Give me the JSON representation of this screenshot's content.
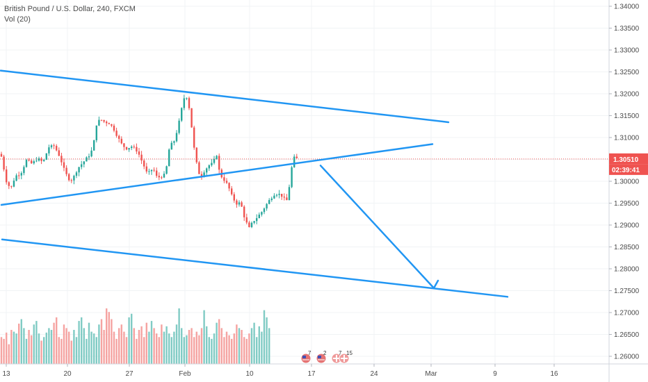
{
  "header": {
    "title": "British Pound / U.S. Dollar, 240, FXCM",
    "volume_label": "Vol (20)"
  },
  "price_axis": {
    "ticks": [
      "1.34000",
      "1.33500",
      "1.33000",
      "1.32500",
      "1.32000",
      "1.31500",
      "1.31000",
      "1.30500",
      "1.30000",
      "1.29500",
      "1.29000",
      "1.28500",
      "1.28000",
      "1.27500",
      "1.27000",
      "1.26500",
      "1.26000"
    ]
  },
  "time_axis": {
    "ticks": [
      "13",
      "20",
      "27",
      "Feb",
      "10",
      "17",
      "24",
      "Mar",
      "9",
      "16"
    ]
  },
  "last_price": {
    "value": "1.30510",
    "countdown": "02:39:41"
  },
  "events": [
    {
      "flag": "us",
      "count": "7"
    },
    {
      "flag": "us",
      "count": "2"
    },
    {
      "flag": "uk",
      "count": "7"
    },
    {
      "flag": "uk",
      "count": "15"
    }
  ],
  "colors": {
    "up": "#26a69a",
    "down": "#ef5350",
    "volume_up": "#80cbc4",
    "volume_down": "#f5a3a1",
    "trendline": "#2196f3",
    "last_price_line": "#ef5350"
  },
  "chart_data": {
    "type": "candlestick",
    "title": "British Pound / U.S. Dollar, 240, FXCM",
    "ylim": [
      1.2575,
      1.3415
    ],
    "x_ticks": [
      "13",
      "20",
      "27",
      "Feb",
      "10",
      "17",
      "24",
      "Mar",
      "9",
      "16"
    ],
    "last_price": 1.3051,
    "price_path": [
      [
        0,
        1.3072
      ],
      [
        4,
        1.3041
      ],
      [
        10,
        1.2994
      ],
      [
        16,
        1.2985
      ],
      [
        22,
        1.3012
      ],
      [
        30,
        1.3018
      ],
      [
        38,
        1.3048
      ],
      [
        46,
        1.304
      ],
      [
        54,
        1.3052
      ],
      [
        62,
        1.3043
      ],
      [
        70,
        1.3078
      ],
      [
        78,
        1.3081
      ],
      [
        86,
        1.3056
      ],
      [
        92,
        1.3028
      ],
      [
        98,
        1.3006
      ],
      [
        104,
        1.3003
      ],
      [
        112,
        1.303
      ],
      [
        120,
        1.3044
      ],
      [
        128,
        1.3059
      ],
      [
        134,
        1.3076
      ],
      [
        138,
        1.3128
      ],
      [
        144,
        1.3142
      ],
      [
        150,
        1.3136
      ],
      [
        158,
        1.3132
      ],
      [
        164,
        1.3118
      ],
      [
        170,
        1.3099
      ],
      [
        176,
        1.3082
      ],
      [
        182,
        1.3075
      ],
      [
        190,
        1.308
      ],
      [
        198,
        1.3068
      ],
      [
        206,
        1.3039
      ],
      [
        212,
        1.3016
      ],
      [
        220,
        1.303
      ],
      [
        226,
        1.3008
      ],
      [
        232,
        1.3011
      ],
      [
        238,
        1.3016
      ],
      [
        244,
        1.3081
      ],
      [
        250,
        1.309
      ],
      [
        256,
        1.3123
      ],
      [
        262,
        1.3172
      ],
      [
        266,
        1.3198
      ],
      [
        270,
        1.3189
      ],
      [
        274,
        1.3148
      ],
      [
        278,
        1.3088
      ],
      [
        282,
        1.3046
      ],
      [
        288,
        1.3008
      ],
      [
        294,
        1.3024
      ],
      [
        300,
        1.3036
      ],
      [
        306,
        1.3041
      ],
      [
        312,
        1.3062
      ],
      [
        316,
        1.3016
      ],
      [
        322,
        1.3004
      ],
      [
        328,
        1.299
      ],
      [
        334,
        1.2964
      ],
      [
        340,
        1.2949
      ],
      [
        346,
        1.2951
      ],
      [
        352,
        1.2915
      ],
      [
        358,
        1.2892
      ],
      [
        364,
        1.2908
      ],
      [
        370,
        1.2918
      ],
      [
        376,
        1.2929
      ],
      [
        382,
        1.2944
      ],
      [
        388,
        1.2958
      ],
      [
        394,
        1.297
      ],
      [
        400,
        1.2972
      ],
      [
        406,
        1.2966
      ],
      [
        412,
        1.2953
      ],
      [
        416,
        1.2988
      ],
      [
        420,
        1.3036
      ],
      [
        424,
        1.3058
      ],
      [
        427,
        1.3051
      ]
    ],
    "volume": {
      "ylim_max": 100,
      "values": [
        30,
        28,
        35,
        22,
        38,
        36,
        34,
        45,
        50,
        40,
        28,
        38,
        32,
        44,
        48,
        34,
        26,
        30,
        35,
        40,
        38,
        46,
        52,
        30,
        28,
        44,
        40,
        36,
        26,
        38,
        30,
        48,
        52,
        40,
        28,
        46,
        36,
        34,
        30,
        44,
        50,
        38,
        62,
        58,
        50,
        36,
        28,
        40,
        44,
        36,
        30,
        52,
        56,
        40,
        28,
        38,
        42,
        30,
        46,
        36,
        48,
        40,
        34,
        30,
        44,
        36,
        42,
        34,
        30,
        36,
        44,
        62,
        40,
        30,
        32,
        38,
        40,
        30,
        36,
        32,
        40,
        60,
        42,
        30,
        28,
        34,
        46,
        50,
        40,
        30,
        36,
        32,
        28,
        34,
        44,
        40,
        38,
        30,
        28,
        34,
        40,
        46,
        30,
        42,
        36,
        60,
        52,
        40
      ]
    },
    "trendlines": [
      {
        "name": "upper-channel",
        "points": [
          [
            1.0,
            1.3253
          ],
          [
            645,
            1.3135
          ]
        ]
      },
      {
        "name": "rising-support",
        "points": [
          [
            2,
            1.2946
          ],
          [
            622,
            1.3085
          ]
        ]
      },
      {
        "name": "lower-channel",
        "points": [
          [
            3,
            1.2867
          ],
          [
            730,
            1.2736
          ]
        ]
      },
      {
        "name": "projection",
        "points": [
          [
            461,
            1.3036
          ],
          [
            624,
            1.2756
          ]
        ]
      },
      {
        "name": "projection-tip",
        "points": [
          [
            624,
            1.2756
          ],
          [
            630,
            1.2773
          ]
        ]
      }
    ]
  }
}
